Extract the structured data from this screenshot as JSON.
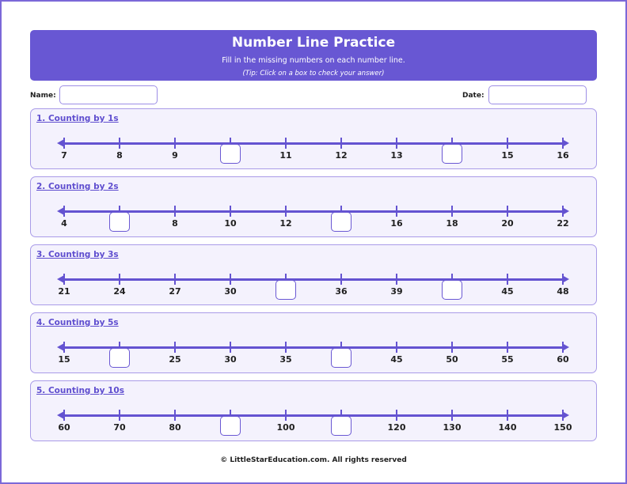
{
  "header": {
    "title": "Number Line Practice",
    "subtitle": "Fill in the missing numbers on each number line.",
    "tip": "(Tip: Click on a box to check your answer)"
  },
  "fields": {
    "name_label": "Name:",
    "name_value": "",
    "date_label": "Date:",
    "date_value": ""
  },
  "sections": [
    {
      "title": "1. Counting by 1s",
      "ticks": [
        "7",
        "8",
        "9",
        null,
        "11",
        "12",
        "13",
        null,
        "15",
        "16"
      ]
    },
    {
      "title": "2. Counting by 2s",
      "ticks": [
        "4",
        null,
        "8",
        "10",
        "12",
        null,
        "16",
        "18",
        "20",
        "22"
      ]
    },
    {
      "title": "3. Counting by 3s",
      "ticks": [
        "21",
        "24",
        "27",
        "30",
        null,
        "36",
        "39",
        null,
        "45",
        "48"
      ]
    },
    {
      "title": "4. Counting by 5s",
      "ticks": [
        "15",
        null,
        "25",
        "30",
        "35",
        null,
        "45",
        "50",
        "55",
        "60"
      ]
    },
    {
      "title": "5. Counting by 10s",
      "ticks": [
        "60",
        "70",
        "80",
        null,
        "100",
        null,
        "120",
        "130",
        "140",
        "150"
      ]
    }
  ],
  "footer": "© LittleStarEducation.com. All rights reserved",
  "colors": {
    "accent": "#6857d3",
    "panel": "#f4f2fd",
    "border": "#a99be8"
  }
}
